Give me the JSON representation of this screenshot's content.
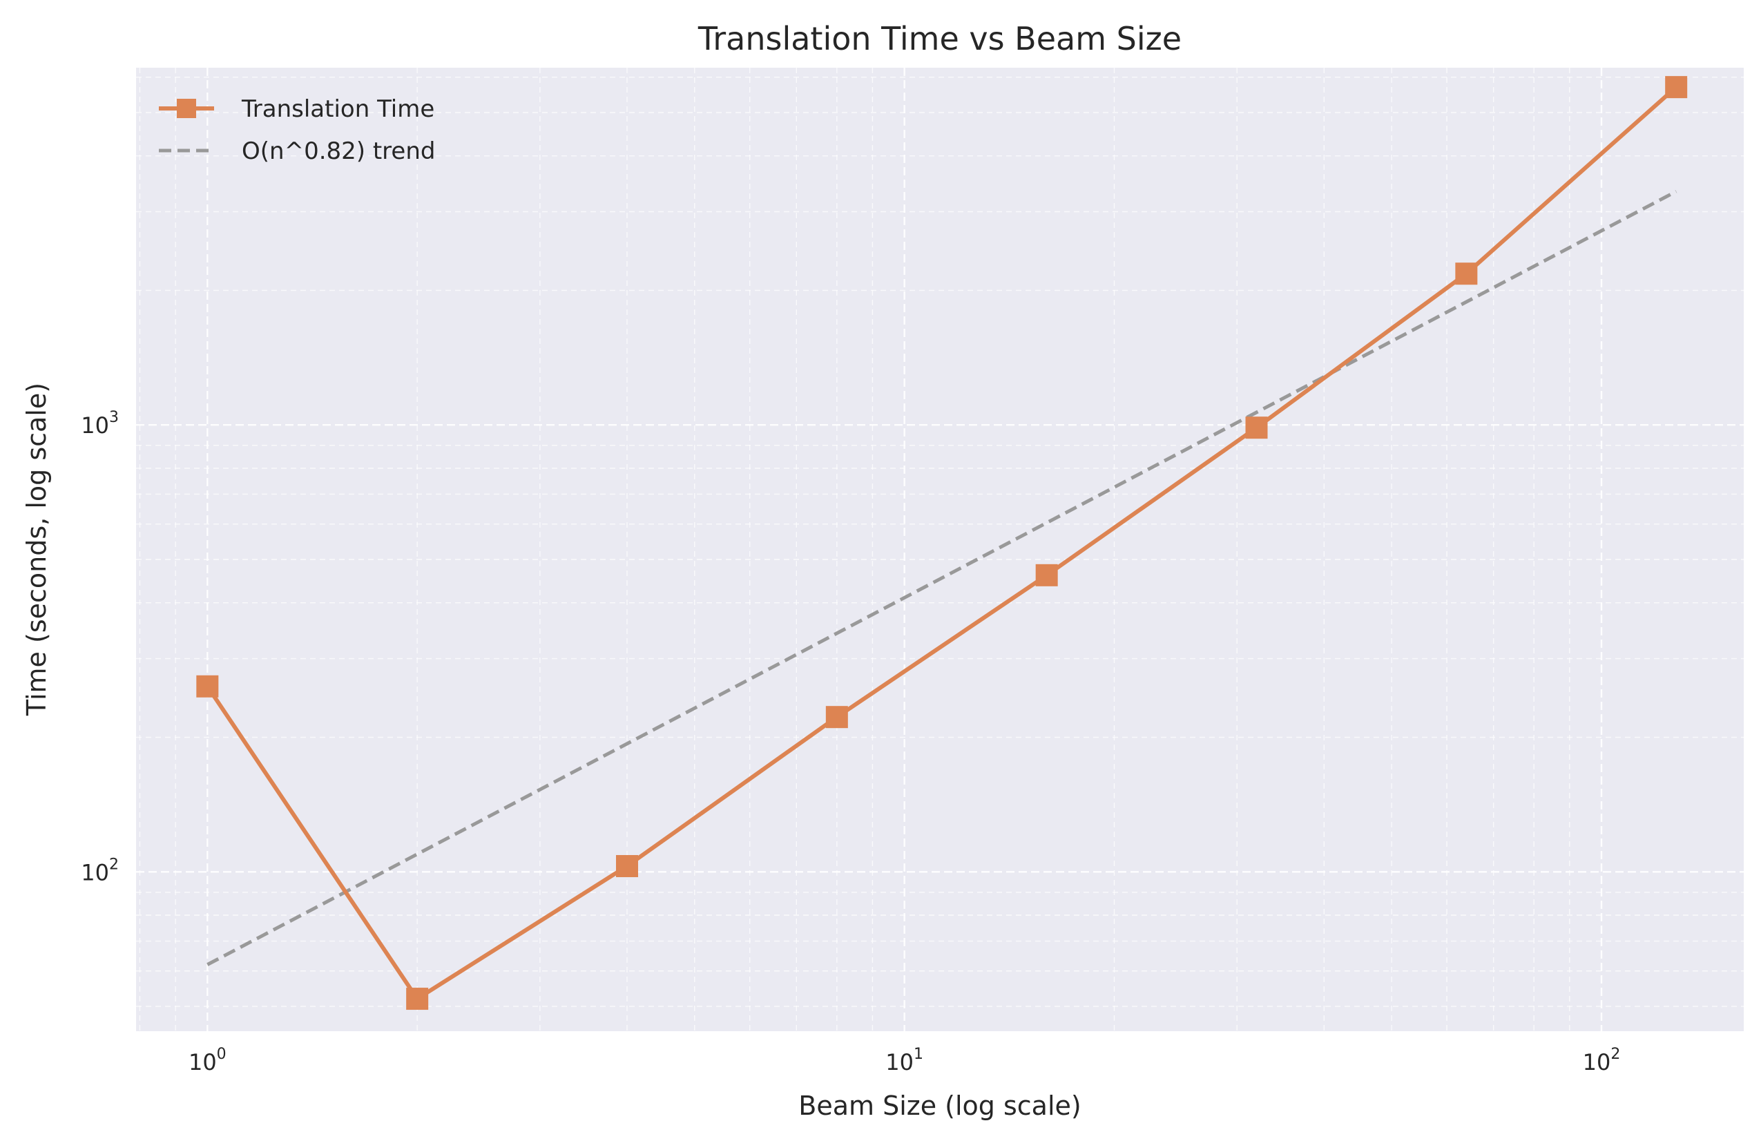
{
  "chart_data": {
    "type": "line",
    "title": "Translation Time vs Beam Size",
    "xlabel": "Beam Size (log scale)",
    "ylabel": "Time (seconds, log scale)",
    "xscale": "log",
    "yscale": "log",
    "xlim": [
      0.79,
      160
    ],
    "ylim": [
      44,
      6300
    ],
    "xticks": [
      {
        "value": 1,
        "base": "10",
        "exp": "0"
      },
      {
        "value": 10,
        "base": "10",
        "exp": "1"
      },
      {
        "value": 100,
        "base": "10",
        "exp": "2"
      }
    ],
    "yticks": [
      {
        "value": 100,
        "base": "10",
        "exp": "2"
      },
      {
        "value": 1000,
        "base": "10",
        "exp": "3"
      }
    ],
    "grid": true,
    "legend_position": "top-left",
    "series": [
      {
        "name": "Translation Time",
        "color": "#dd8452",
        "style": "solid",
        "marker": "square",
        "x": [
          1,
          2,
          4,
          8,
          16,
          32,
          64,
          128
        ],
        "y": [
          260,
          52,
          103,
          222,
          461,
          986,
          2180,
          5700
        ]
      },
      {
        "name": "O(n^0.82) trend",
        "color": "#999999",
        "style": "dashed",
        "marker": "none",
        "x": [
          1,
          128
        ],
        "y": [
          62,
          3330
        ]
      }
    ]
  },
  "colors": {
    "plot_background": "#eaeaf2",
    "grid": "#ffffff"
  }
}
